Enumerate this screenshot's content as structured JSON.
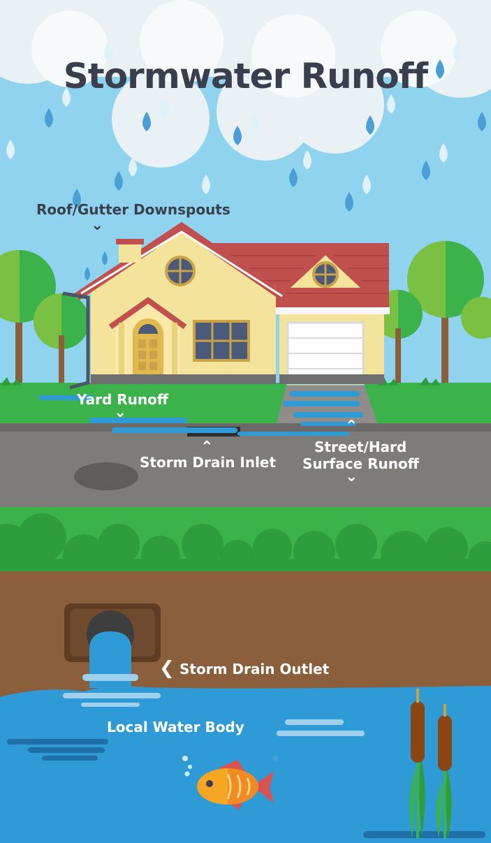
{
  "title": "Stormwater Runoff",
  "labels": {
    "roof_gutter": "Roof/Gutter Downspouts",
    "yard_runoff": "Yard Runoff",
    "storm_drain_inlet": "Storm Drain Inlet",
    "street_line1": "Street/Hard",
    "street_line2": "Surface Runoff",
    "storm_drain_outlet": "Storm Drain Outlet",
    "local_water_body": "Local Water Body"
  },
  "icons": {
    "arrow_down": "chevron-down-icon",
    "arrow_up": "chevron-up-icon",
    "arrow_left": "chevron-left-icon"
  },
  "colors": {
    "sky": "#8fd3ef",
    "cloud": "#e8f0f3",
    "rain": "#4aa5d8",
    "grass": "#3cb34a",
    "road": "#7d7c78",
    "soil": "#8b5e3c",
    "water": "#2f9bd6",
    "roof": "#c0504d",
    "wall": "#f4e39b",
    "text_dark": "#3a3f4e"
  }
}
